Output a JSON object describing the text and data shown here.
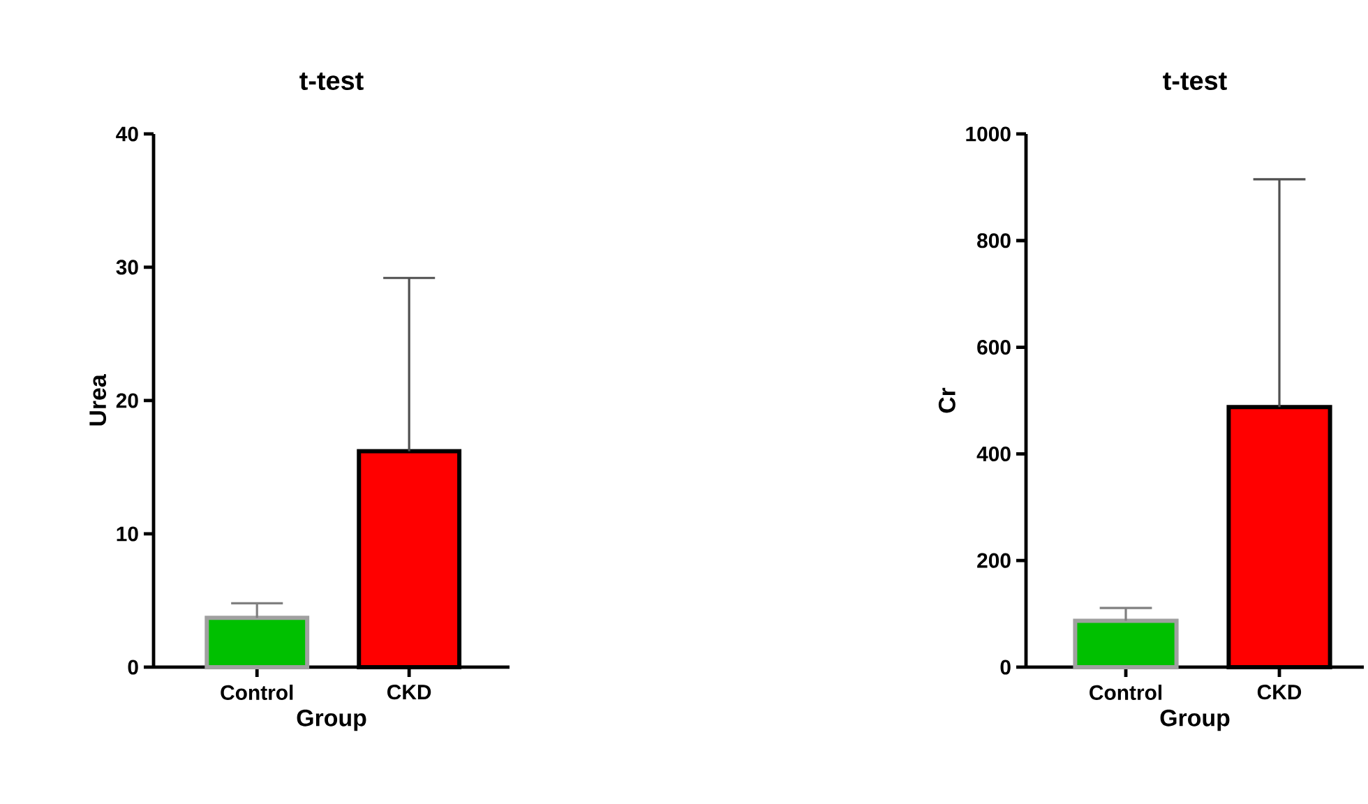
{
  "chart_data": [
    {
      "type": "bar",
      "title": "t-test",
      "xlabel": "Group",
      "ylabel": "Urea",
      "categories": [
        "Control",
        "CKD"
      ],
      "values": [
        3.7,
        16.2
      ],
      "colors": [
        "#00c000",
        "#ff0000"
      ],
      "errors": [
        [
          3.7,
          4.8
        ],
        [
          16.2,
          29.2
        ]
      ],
      "ylim": [
        0,
        40
      ],
      "yticks": [
        0,
        10,
        20,
        30,
        40
      ],
      "grid": false
    },
    {
      "type": "bar",
      "title": "t-test",
      "xlabel": "Group",
      "ylabel": "Cr",
      "categories": [
        "Control",
        "CKD"
      ],
      "values": [
        87,
        488
      ],
      "colors": [
        "#00c000",
        "#ff0000"
      ],
      "errors": [
        [
          87,
          111
        ],
        [
          488,
          915
        ]
      ],
      "ylim": [
        0,
        1000
      ],
      "yticks": [
        0,
        200,
        400,
        600,
        800,
        1000
      ],
      "grid": false
    }
  ]
}
